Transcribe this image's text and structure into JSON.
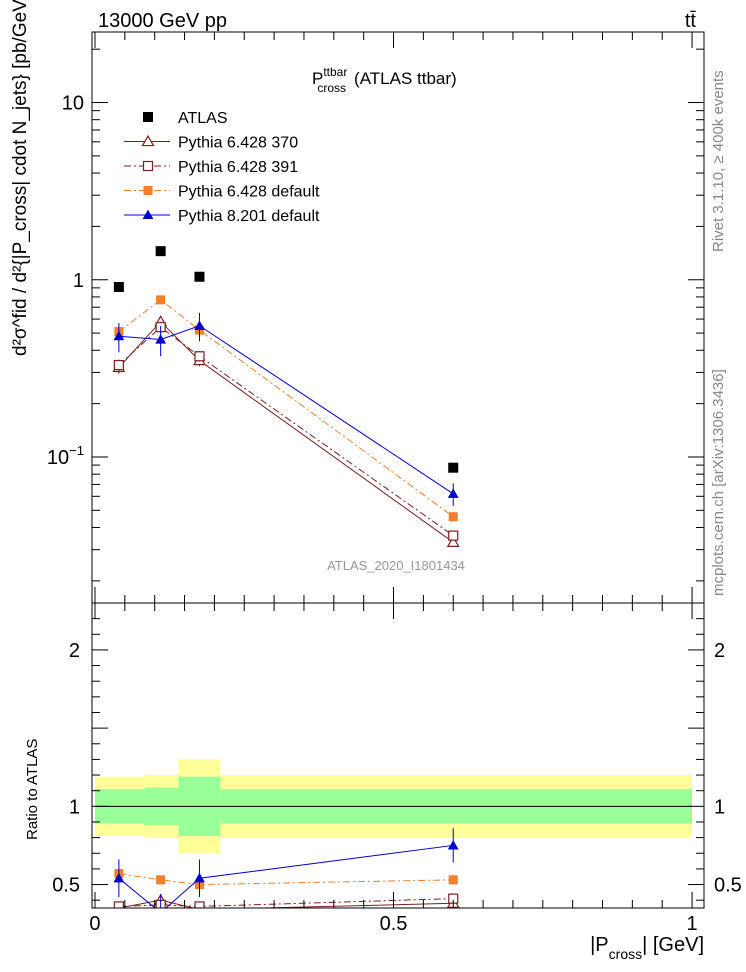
{
  "header": {
    "energy": "13000 GeV pp",
    "process": "tt̄"
  },
  "side": {
    "rivet": "Rivet 3.1.10, ≥ 400k events",
    "mcplots": "mcplots.cern.ch [arXiv:1306.3436]"
  },
  "chart_data": {
    "type": "line",
    "title": "P_cross^ttbar (ATLAS ttbar)",
    "title_main": "P",
    "title_sup": "ttbar",
    "title_sub": "cross",
    "title_rest": "(ATLAS ttbar)",
    "analysis_id": "ATLAS_2020_I1801434",
    "xlabel": "|P_cross| [GeV]",
    "xlabel_pre": "|P",
    "xlabel_sub": "cross",
    "xlabel_post": "| [GeV]",
    "ylabel": "d²σ^fid / d²{|P_cross| cdot N_jets} [pb/GeV]",
    "ratio_ylabel": "Ratio to ATLAS",
    "xlim": [
      -0.005,
      1.02
    ],
    "ylim_log": [
      0.015,
      25
    ],
    "ratio_ylim": [
      0.35,
      2.3
    ],
    "x_ticks": [
      0,
      0.5,
      1
    ],
    "x_tick_labels": [
      "0",
      "0.5",
      "1"
    ],
    "y_ticks": [
      0.1,
      1,
      10
    ],
    "ratio_ticks": [
      0.5,
      1,
      2
    ],
    "ratio_tick_labels": [
      "0.5",
      "1",
      "2"
    ],
    "bins": [
      [
        0.0,
        0.083
      ],
      [
        0.083,
        0.14
      ],
      [
        0.14,
        0.21
      ],
      [
        0.21,
        1.0
      ]
    ],
    "x": [
      0.04,
      0.11,
      0.175,
      0.6
    ],
    "data": {
      "name": "ATLAS",
      "values": [
        0.91,
        1.45,
        1.04,
        0.087
      ],
      "band_inner": [
        0.11,
        0.12,
        0.19,
        0.11
      ],
      "band_outer": [
        0.19,
        0.2,
        0.3,
        0.2
      ]
    },
    "series": [
      {
        "name": "Pythia 6.428 370",
        "color": "#7b1f1f",
        "marker": "triangle-open",
        "dash": "",
        "values": [
          0.32,
          0.58,
          0.35,
          0.033
        ],
        "errors": [
          0.025,
          0.04,
          0.025,
          0.002
        ],
        "ratio": [
          0.35,
          0.4,
          0.34,
          0.38
        ]
      },
      {
        "name": "Pythia 6.428 391",
        "color": "#7b1f1f",
        "marker": "square-open",
        "dash": "7,3,2,3",
        "values": [
          0.33,
          0.54,
          0.37,
          0.036
        ],
        "errors": [
          0.025,
          0.04,
          0.025,
          0.002
        ],
        "ratio": [
          0.36,
          0.37,
          0.36,
          0.41
        ]
      },
      {
        "name": "Pythia 6.428 default",
        "color": "#f07f2f",
        "marker": "square",
        "dash": "7,3,2,3",
        "values": [
          0.51,
          0.77,
          0.52,
          0.046
        ],
        "errors": [
          0.03,
          0.04,
          0.03,
          0.003
        ],
        "ratio": [
          0.57,
          0.53,
          0.5,
          0.53
        ],
        "ratio_err": [
          0.02,
          0.02,
          0.02,
          0.03
        ]
      },
      {
        "name": "Pythia 8.201 default",
        "color": "#0000cc",
        "marker": "triangle",
        "dash": "",
        "values": [
          0.48,
          0.46,
          0.55,
          0.062
        ],
        "errors": [
          0.09,
          0.09,
          0.1,
          0.009
        ],
        "ratio": [
          0.54,
          0.32,
          0.54,
          0.75
        ],
        "ratio_err": [
          0.12,
          0.12,
          0.12,
          0.11
        ]
      }
    ]
  }
}
